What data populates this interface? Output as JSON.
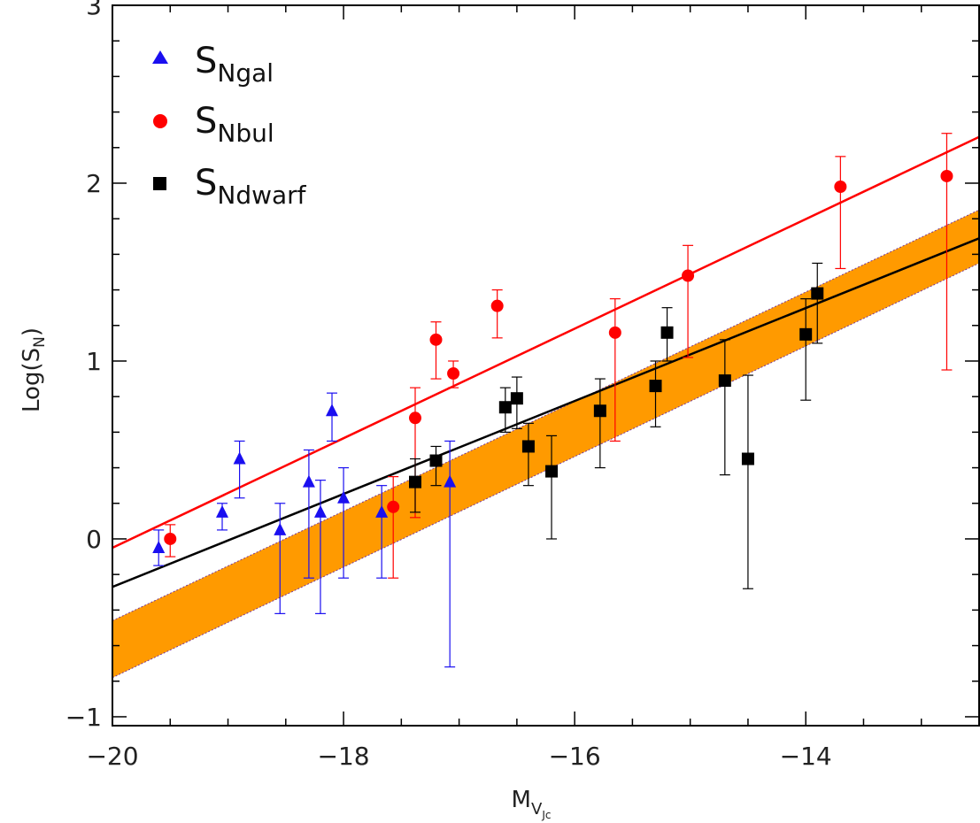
{
  "chart_data": {
    "type": "scatter",
    "xlabel": {
      "main": "M",
      "sub1": "V",
      "sub2": "Jc"
    },
    "ylabel": {
      "main": "Log(S",
      "sub": "N",
      "close": ")"
    },
    "xlim": [
      -20,
      -12.5
    ],
    "ylim": [
      -1.05,
      3.0
    ],
    "x_ticks": [
      -20,
      -18,
      -16,
      -14
    ],
    "x_tick_labels": [
      "−20",
      "−18",
      "−16",
      "−14"
    ],
    "y_ticks": [
      -1,
      0,
      1,
      2,
      3
    ],
    "y_tick_labels": [
      "−1",
      "0",
      "1",
      "2",
      "3"
    ],
    "grid": false,
    "legend_position": "top-left",
    "colors": {
      "gal": "#1a0ff0",
      "bul": "#ff0000",
      "dwarf": "#000000",
      "band": "#ff9a00",
      "band_edge": "#7a3a9a"
    },
    "series": [
      {
        "key": "gal",
        "legend_main": "S",
        "legend_sub": "Ngal",
        "marker": "triangle",
        "points": [
          {
            "x": -19.6,
            "y": -0.05,
            "lo": -0.15,
            "hi": 0.05
          },
          {
            "x": -19.05,
            "y": 0.15,
            "lo": 0.05,
            "hi": 0.2
          },
          {
            "x": -18.9,
            "y": 0.45,
            "lo": 0.23,
            "hi": 0.55
          },
          {
            "x": -18.55,
            "y": 0.05,
            "lo": -0.42,
            "hi": 0.2
          },
          {
            "x": -18.3,
            "y": 0.32,
            "lo": -0.22,
            "hi": 0.5
          },
          {
            "x": -18.2,
            "y": 0.15,
            "lo": -0.42,
            "hi": 0.33
          },
          {
            "x": -18.1,
            "y": 0.72,
            "lo": 0.55,
            "hi": 0.82
          },
          {
            "x": -18.0,
            "y": 0.23,
            "lo": -0.22,
            "hi": 0.4
          },
          {
            "x": -17.67,
            "y": 0.15,
            "lo": -0.22,
            "hi": 0.3
          },
          {
            "x": -17.08,
            "y": 0.32,
            "lo": -0.72,
            "hi": 0.55
          }
        ]
      },
      {
        "key": "bul",
        "legend_main": "S",
        "legend_sub": "Nbul",
        "marker": "circle",
        "points": [
          {
            "x": -19.5,
            "y": 0.0,
            "lo": -0.1,
            "hi": 0.08
          },
          {
            "x": -17.57,
            "y": 0.18,
            "lo": -0.22,
            "hi": 0.35
          },
          {
            "x": -17.38,
            "y": 0.68,
            "lo": 0.12,
            "hi": 0.85
          },
          {
            "x": -17.2,
            "y": 1.12,
            "lo": 0.9,
            "hi": 1.22
          },
          {
            "x": -17.05,
            "y": 0.93,
            "lo": 0.85,
            "hi": 1.0
          },
          {
            "x": -16.67,
            "y": 1.31,
            "lo": 1.13,
            "hi": 1.4
          },
          {
            "x": -15.65,
            "y": 1.16,
            "lo": 0.55,
            "hi": 1.35
          },
          {
            "x": -15.02,
            "y": 1.48,
            "lo": 1.02,
            "hi": 1.65
          },
          {
            "x": -13.7,
            "y": 1.98,
            "lo": 1.52,
            "hi": 2.15
          },
          {
            "x": -12.78,
            "y": 2.04,
            "lo": 0.95,
            "hi": 2.28
          }
        ]
      },
      {
        "key": "dwarf",
        "legend_main": "S",
        "legend_sub": "Ndwarf",
        "marker": "square",
        "points": [
          {
            "x": -17.38,
            "y": 0.32,
            "lo": 0.15,
            "hi": 0.45
          },
          {
            "x": -17.2,
            "y": 0.44,
            "lo": 0.3,
            "hi": 0.52
          },
          {
            "x": -16.6,
            "y": 0.74,
            "lo": 0.6,
            "hi": 0.85
          },
          {
            "x": -16.5,
            "y": 0.79,
            "lo": 0.62,
            "hi": 0.91
          },
          {
            "x": -16.4,
            "y": 0.52,
            "lo": 0.3,
            "hi": 0.65
          },
          {
            "x": -16.2,
            "y": 0.38,
            "lo": 0.0,
            "hi": 0.58
          },
          {
            "x": -15.78,
            "y": 0.72,
            "lo": 0.4,
            "hi": 0.9
          },
          {
            "x": -15.3,
            "y": 0.86,
            "lo": 0.63,
            "hi": 1.0
          },
          {
            "x": -15.2,
            "y": 1.16,
            "lo": 1.0,
            "hi": 1.3
          },
          {
            "x": -14.7,
            "y": 0.89,
            "lo": 0.36,
            "hi": 1.12
          },
          {
            "x": -14.5,
            "y": 0.45,
            "lo": -0.28,
            "hi": 0.92
          },
          {
            "x": -14.0,
            "y": 1.15,
            "lo": 0.78,
            "hi": 1.35
          },
          {
            "x": -13.9,
            "y": 1.38,
            "lo": 1.1,
            "hi": 1.55
          }
        ]
      }
    ],
    "fit_lines": [
      {
        "key": "bul",
        "x": [
          -20,
          -12.5
        ],
        "y": [
          -0.05,
          2.26
        ]
      },
      {
        "key": "dwarf",
        "x": [
          -20,
          -12.5
        ],
        "y": [
          -0.27,
          1.69
        ]
      }
    ],
    "band": {
      "x": [
        -20,
        -12.5
      ],
      "upper": [
        -0.46,
        1.85
      ],
      "lower": [
        -0.78,
        1.55
      ]
    }
  }
}
